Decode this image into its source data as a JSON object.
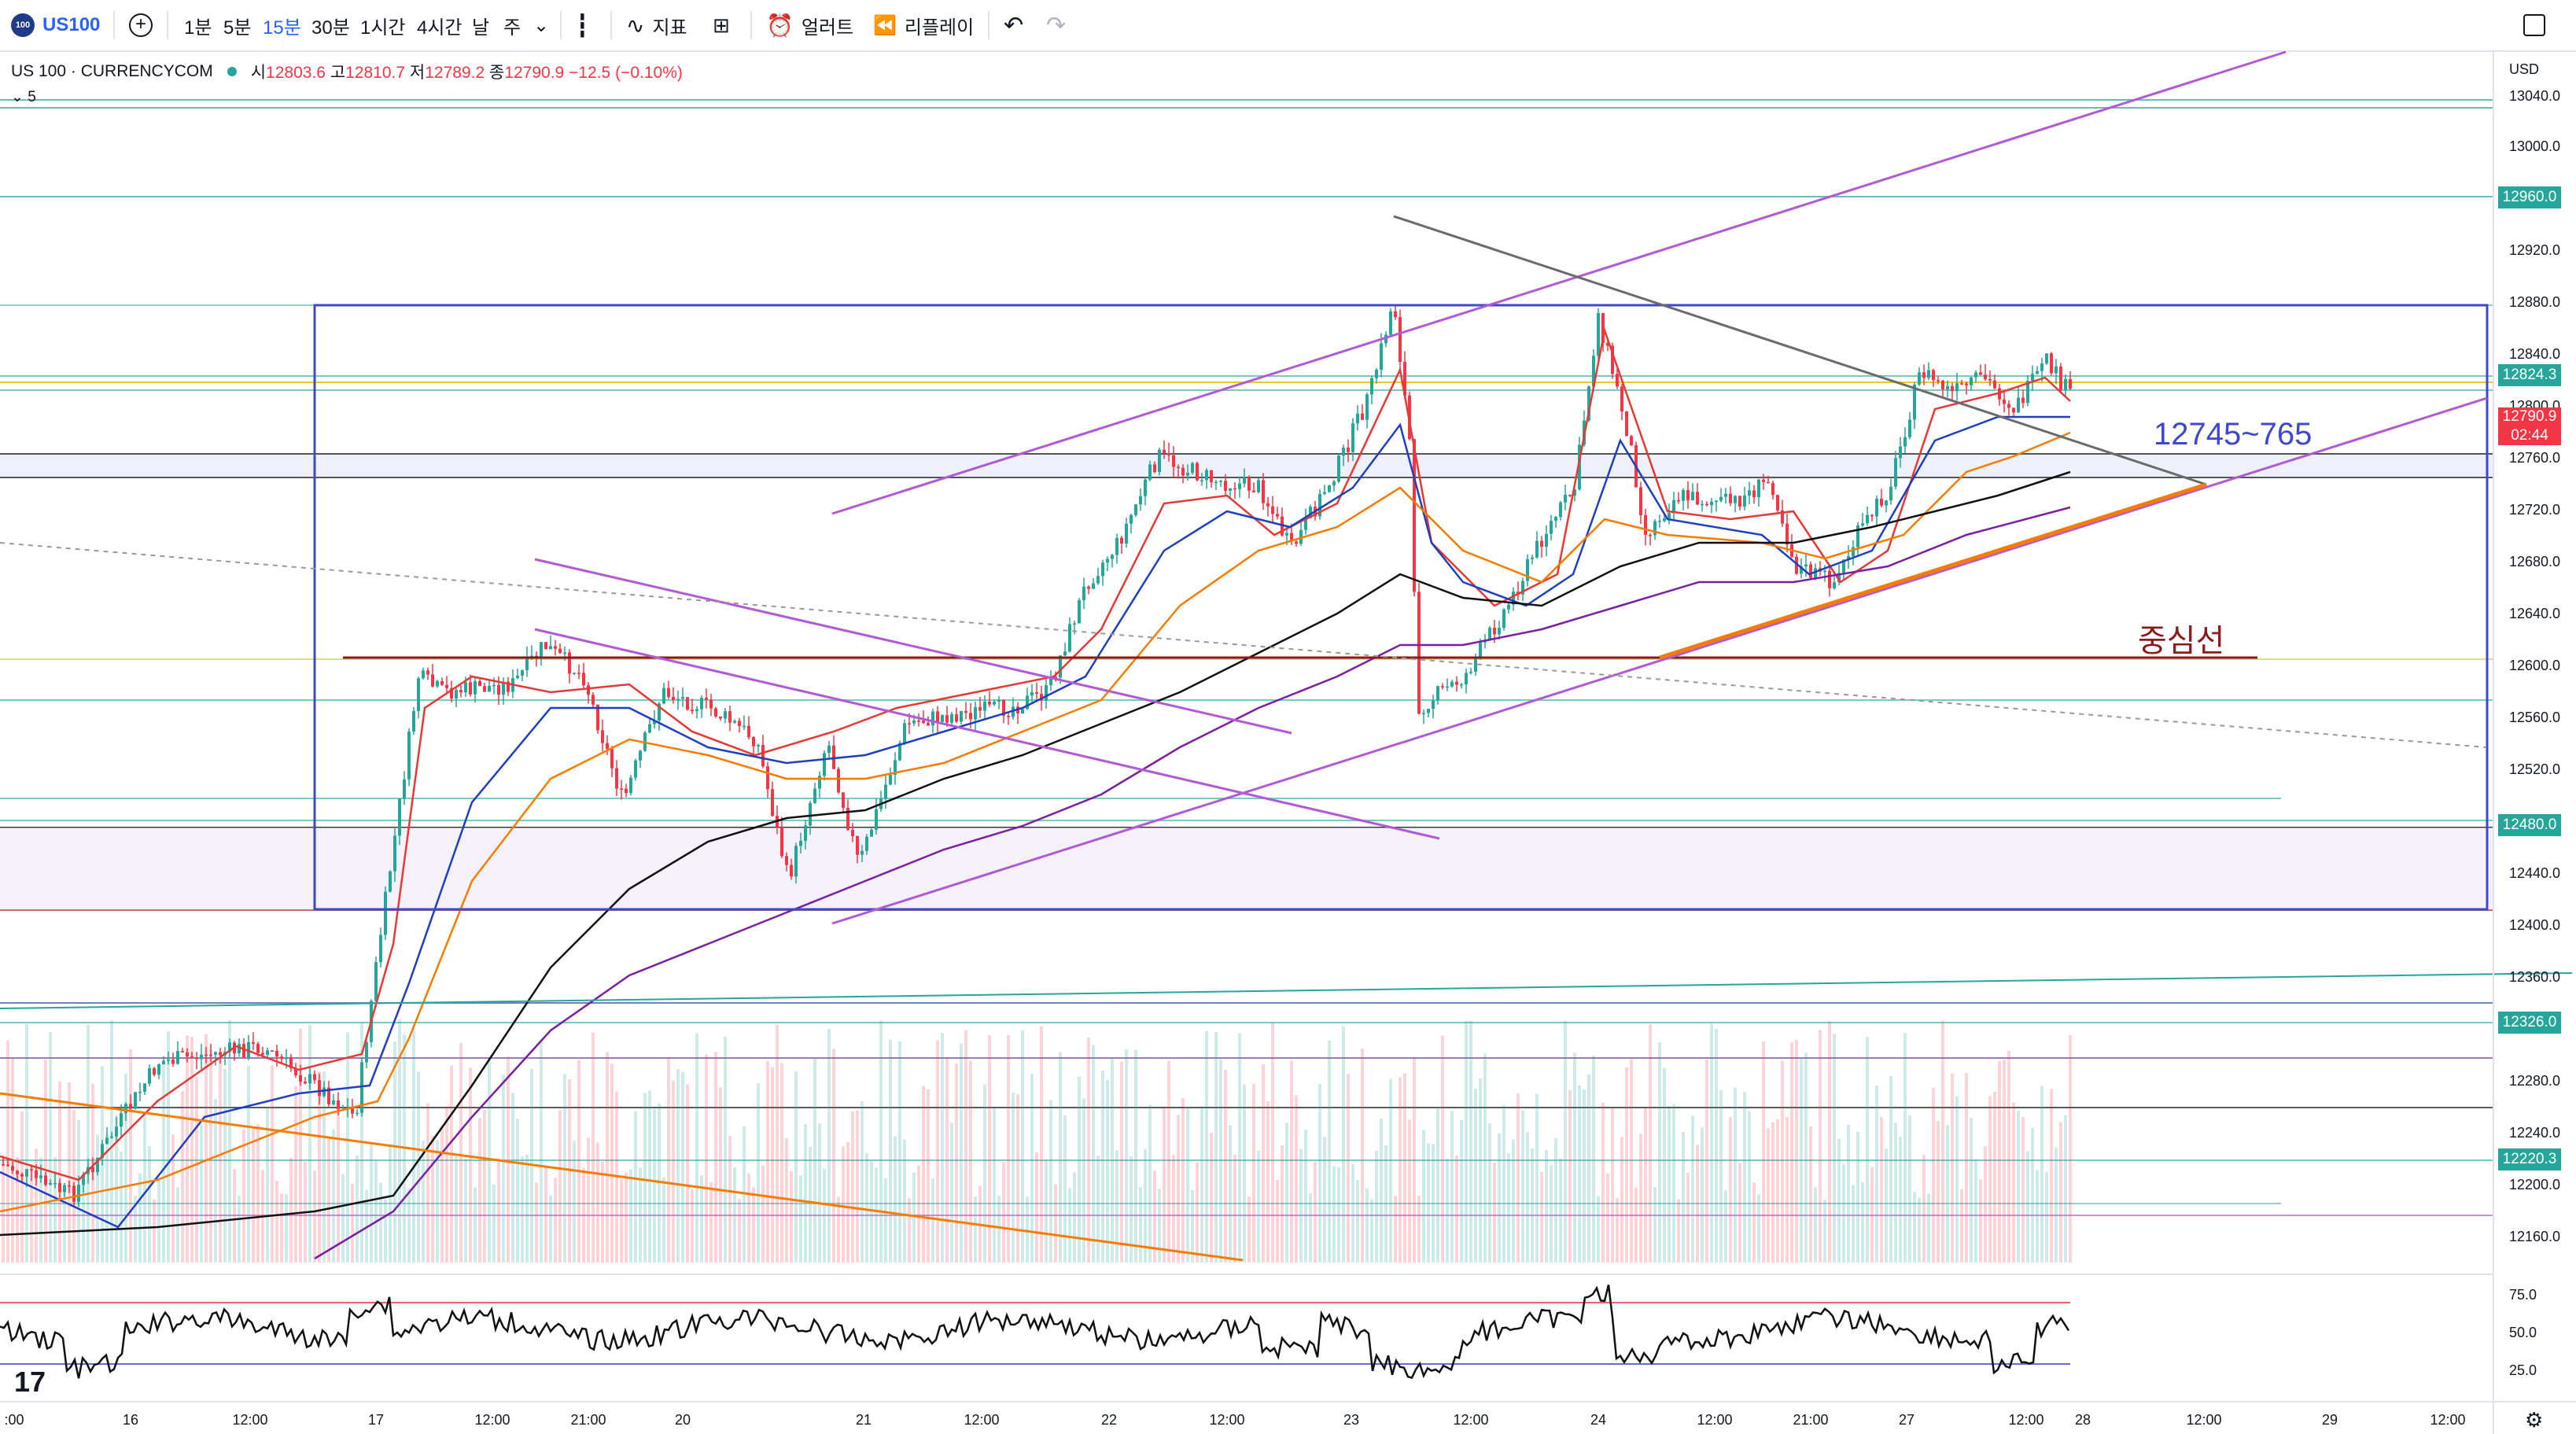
{
  "toolbar": {
    "symbol": "US100",
    "symbol_logo": "100",
    "intervals": [
      "1분",
      "5분",
      "15분",
      "30분",
      "1시간",
      "4시간",
      "날",
      "주"
    ],
    "active_interval": "15분",
    "indicators_label": "지표",
    "alert_label": "얼러트",
    "replay_label": "리플레이"
  },
  "legend": {
    "title": "US 100 · CURRENCYCOM",
    "open_key": "시",
    "open_val": "12803.6",
    "high_key": "고",
    "high_val": "12810.7",
    "low_key": "저",
    "low_val": "12789.2",
    "close_key": "종",
    "close_val": "12790.9",
    "change": "−12.5 (−0.10%)",
    "ma_period": "5"
  },
  "price_axis": {
    "currency": "USD",
    "ticks": [
      "13040.0",
      "13000.0",
      "12920.0",
      "12880.0",
      "12840.0",
      "12800.0",
      "12760.0",
      "12720.0",
      "12680.0",
      "12640.0",
      "12600.0",
      "12560.0",
      "12520.0",
      "12440.0",
      "12400.0",
      "12360.0",
      "12280.0",
      "12240.0",
      "12200.0",
      "12160.0"
    ],
    "badges": [
      {
        "label": "12960.0",
        "color": "#26a69a"
      },
      {
        "label": "12824.3",
        "color": "#26a69a"
      },
      {
        "label": "12790.9",
        "color": "#f23645"
      },
      {
        "label": "02:44",
        "color": "#f23645"
      },
      {
        "label": "12480.0",
        "color": "#26a69a"
      },
      {
        "label": "12326.0",
        "color": "#26a69a"
      },
      {
        "label": "12220.3",
        "color": "#26a69a"
      }
    ]
  },
  "oscillator_axis": [
    "75.0",
    "50.0",
    "25.0"
  ],
  "time_axis": [
    ":00",
    "16",
    "12:00",
    "17",
    "12:00",
    "21:00",
    "20",
    "21",
    "12:00",
    "22",
    "12:00",
    "23",
    "12:00",
    "24",
    "12:00",
    "21:00",
    "27",
    "12:00",
    "28",
    "12:00",
    "29",
    "12:00"
  ],
  "annotations": {
    "range_label": "12745~765",
    "center_line_label": "중심선"
  },
  "colors": {
    "up": "#26a69a",
    "down": "#f23645",
    "accent": "#2962ff",
    "box": "#3f48cc",
    "center_line": "#8b1a1a",
    "channel": "#b05ad4",
    "trend_orange": "#f57c00",
    "downtrend": "#6b6b6b"
  }
}
